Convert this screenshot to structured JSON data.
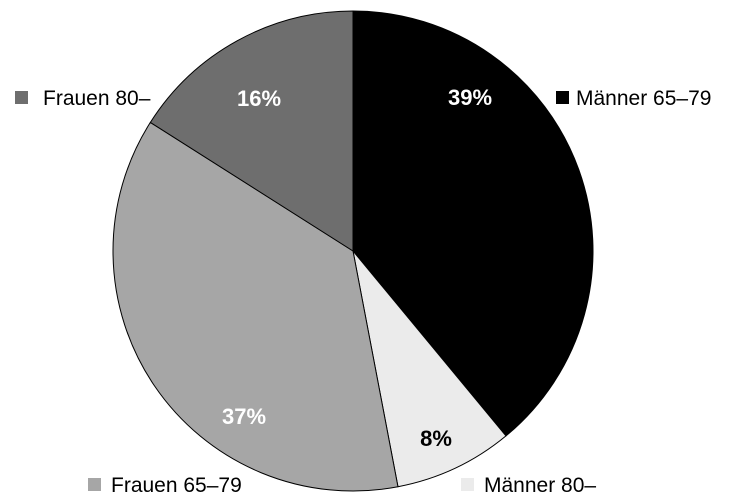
{
  "chart_data": {
    "type": "pie",
    "slices": [
      {
        "label": "Männer 65–79",
        "value": 39,
        "value_label": "39%",
        "color": "#000000",
        "label_color": "#ffffff"
      },
      {
        "label": "Männer 80–",
        "value": 8,
        "value_label": "8%",
        "color": "#ebebeb",
        "label_color": "#000000"
      },
      {
        "label": "Frauen 65–79",
        "value": 37,
        "value_label": "37%",
        "color": "#a6a6a6",
        "label_color": "#ffffff"
      },
      {
        "label": "Frauen 80–",
        "value": 16,
        "value_label": "16%",
        "color": "#6e6e6e",
        "label_color": "#ffffff"
      }
    ],
    "start_angle": "12 o'clock",
    "direction": "clockwise",
    "legend_placement": "around the pie, next to each slice"
  }
}
